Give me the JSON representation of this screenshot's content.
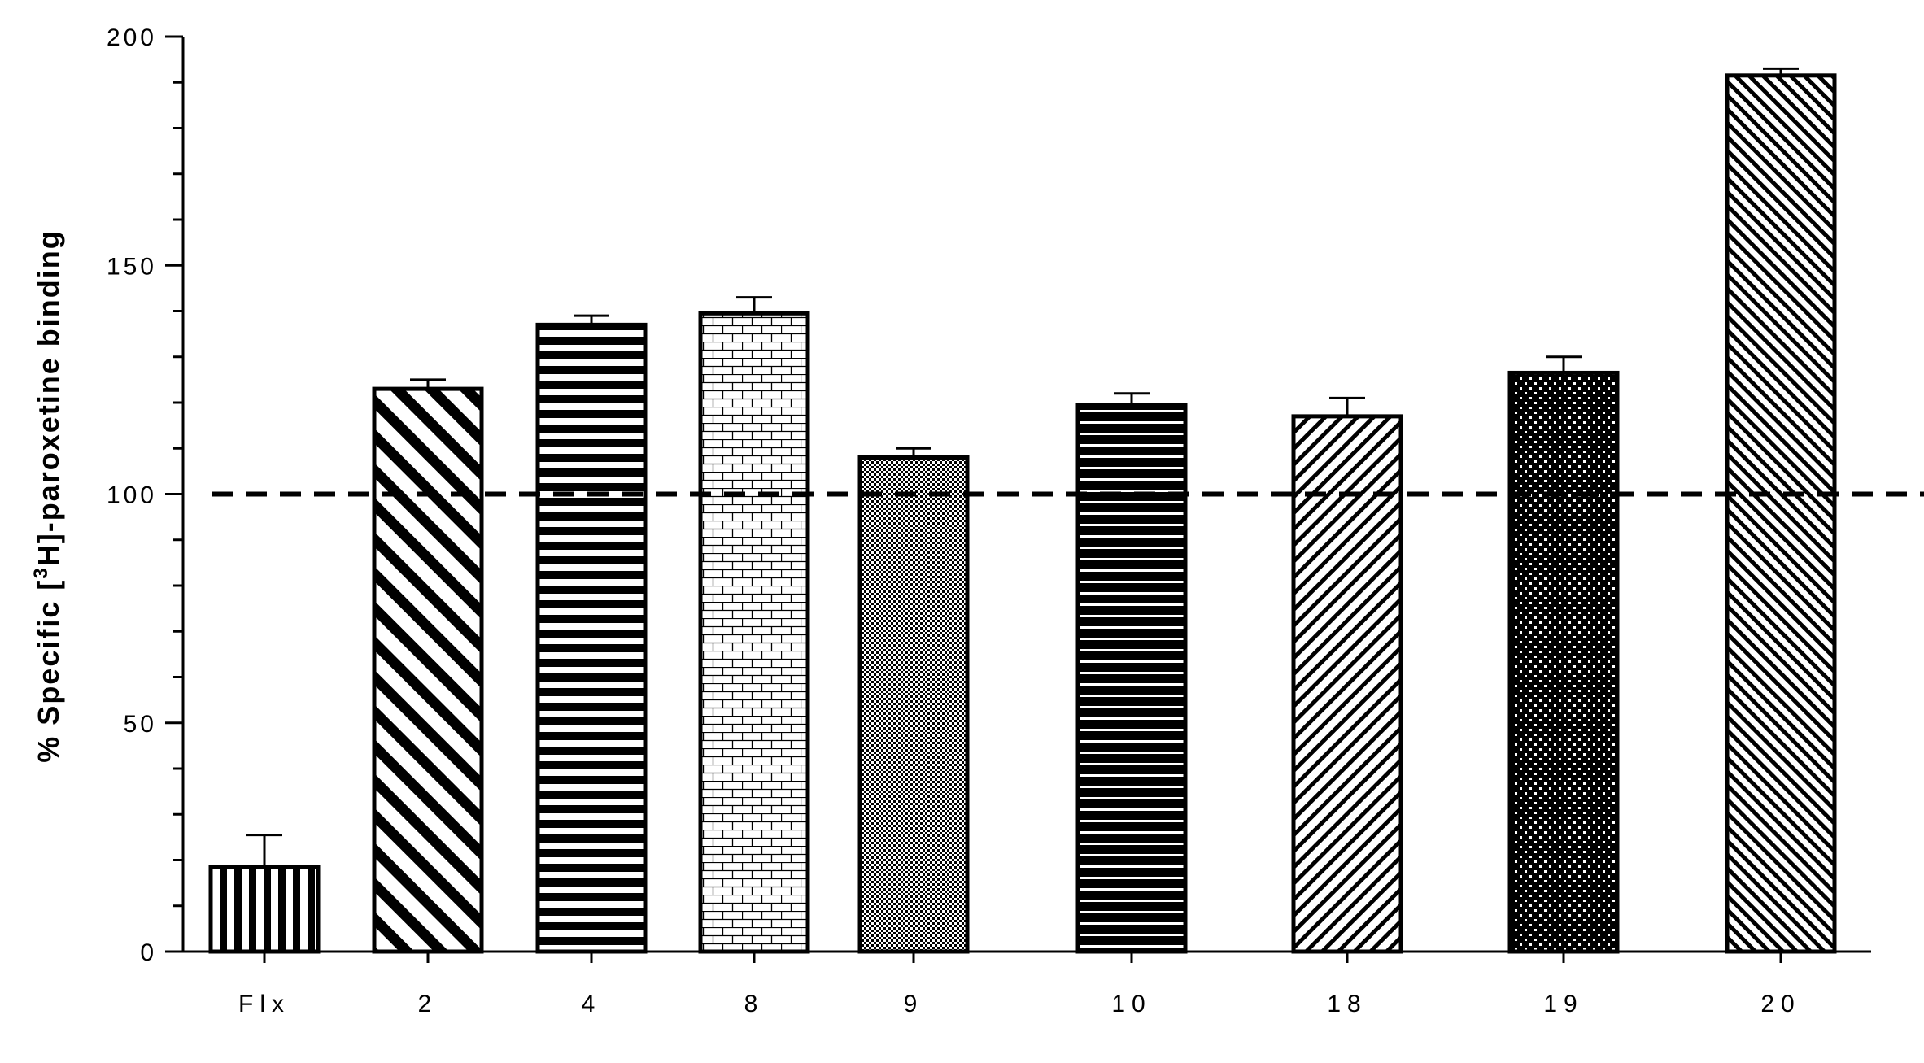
{
  "chart_data": {
    "type": "bar",
    "categories": [
      "Flx",
      "2",
      "4",
      "8",
      "9",
      "10",
      "18",
      "19",
      "20"
    ],
    "values": [
      18.5,
      123,
      137,
      139.5,
      108,
      119.5,
      117,
      126.5,
      191.5
    ],
    "error_upper": [
      25.5,
      125,
      139,
      143,
      110,
      122,
      121,
      130,
      193
    ],
    "patterns": [
      "vertical-lines",
      "diagonal-wide",
      "horizontal-thick",
      "brick",
      "fine-dots",
      "horizontal-thin",
      "back-diagonal",
      "dots",
      "diagonal-dense"
    ],
    "reference_line": {
      "value": 100,
      "style": "dashed"
    },
    "title": "",
    "xlabel": "",
    "ylabel": "% Specific [3H]-paroxetine binding",
    "ylabel_parts": {
      "before": "% Specific [",
      "superscript": "3",
      "after": "H]-paroxetine binding"
    },
    "ylim": [
      0,
      200
    ],
    "yticks": [
      "0",
      "50",
      "100",
      "150",
      "200"
    ],
    "grid": false,
    "legend": "none"
  }
}
